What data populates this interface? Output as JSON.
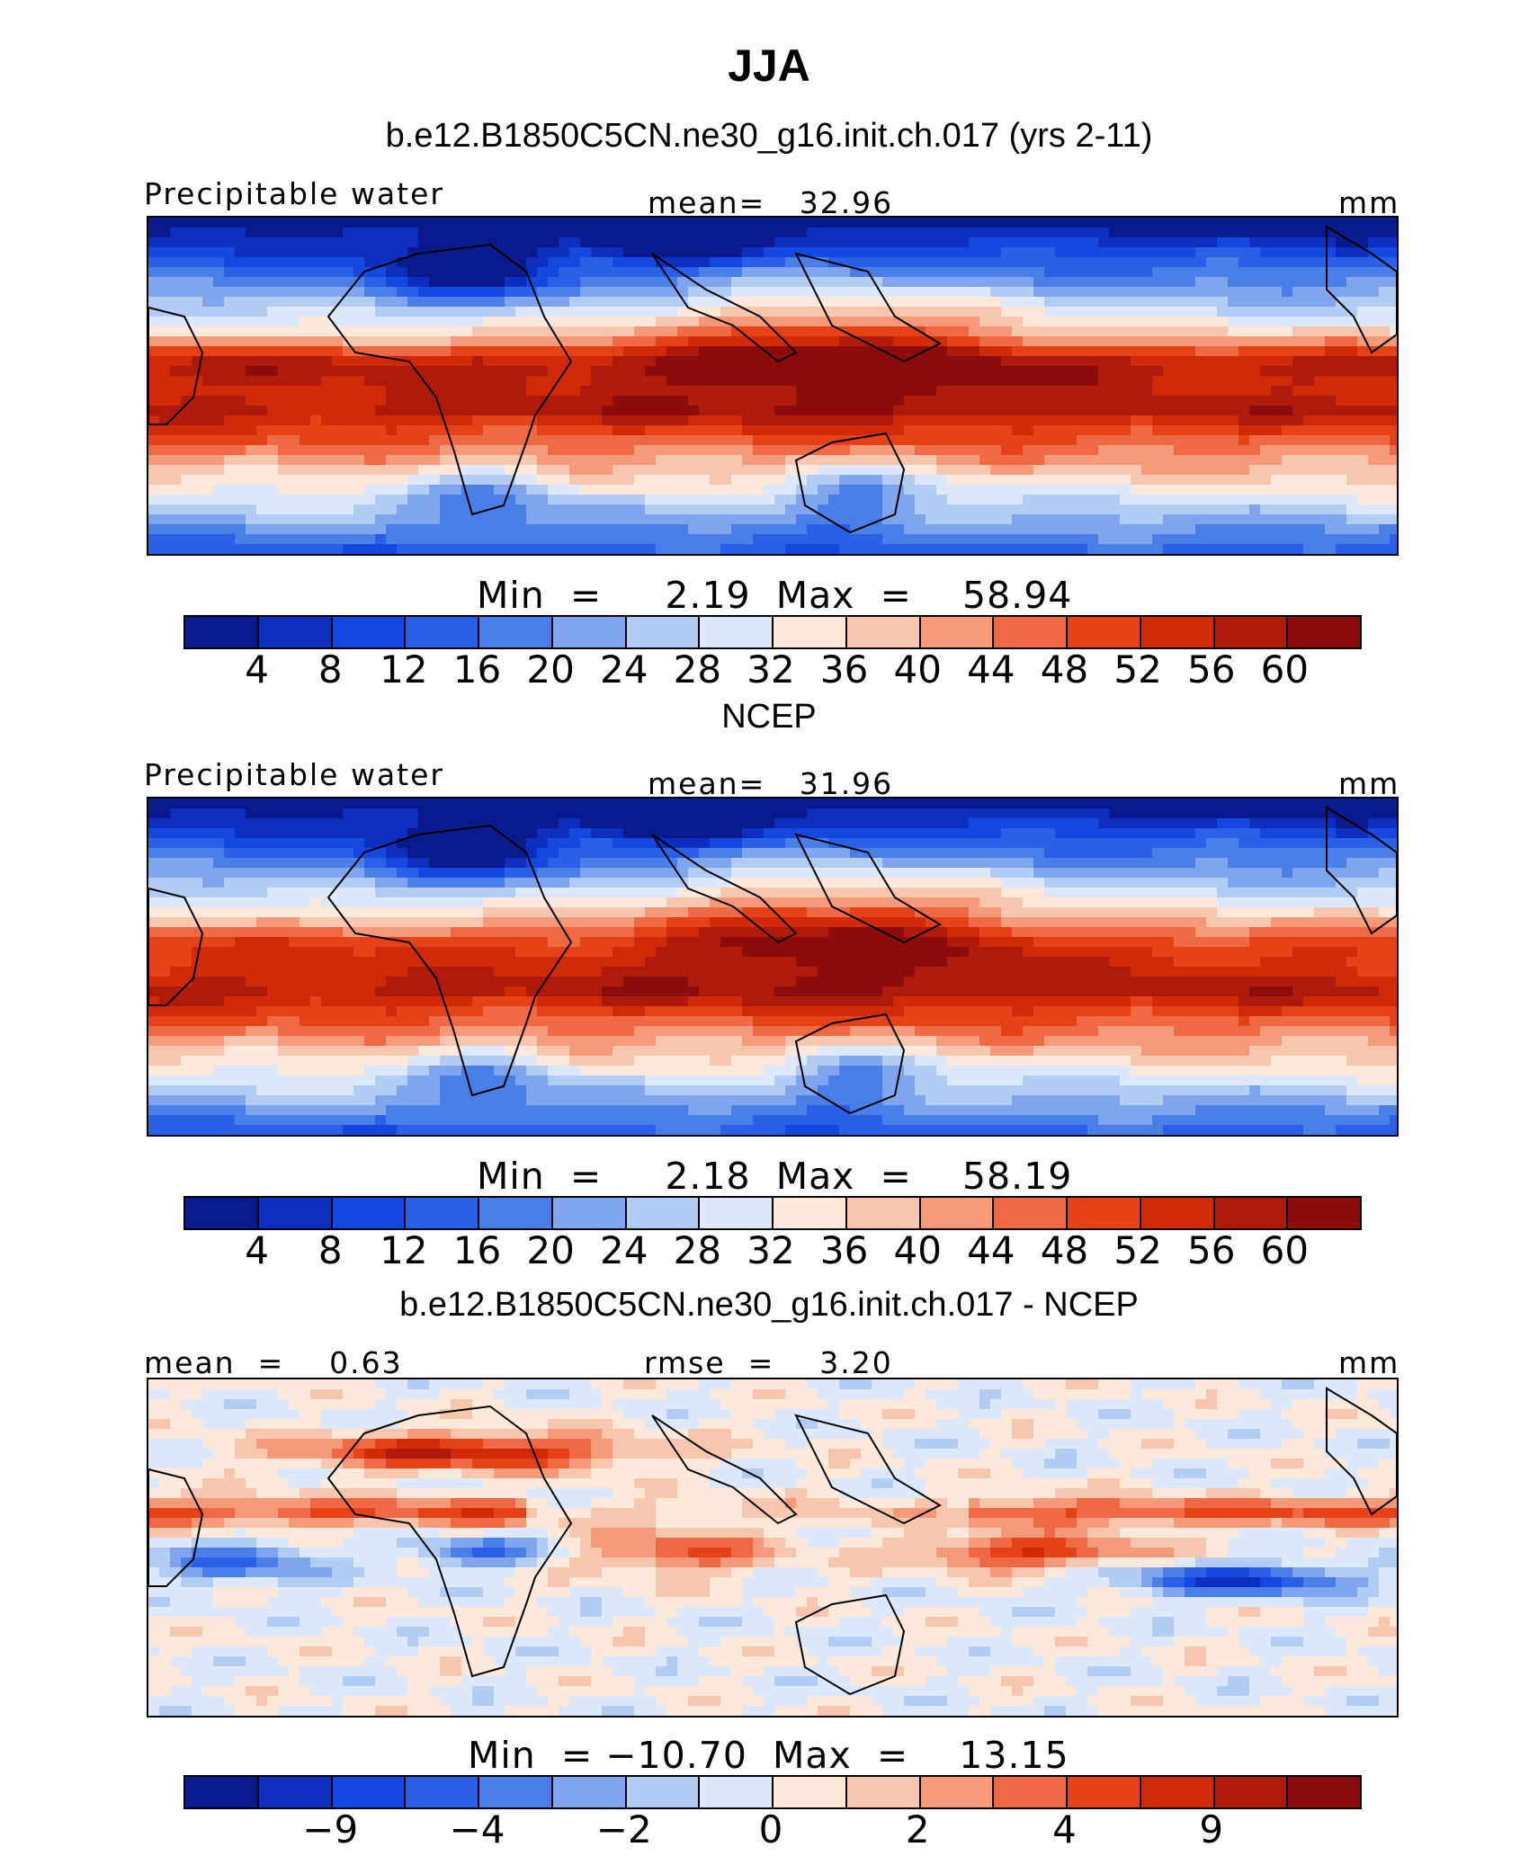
{
  "title": "JJA",
  "panels": [
    {
      "title": "b.e12.B1850C5CN.ne30_g16.init.ch.017 (yrs 2-11)",
      "left_label": "Precipitable water",
      "center_label": "mean=   32.96",
      "right_label": "mm",
      "minmax": "Min  =     2.19  Max  =    58.94",
      "tick_labels": [
        "4",
        "8",
        "12",
        "16",
        "20",
        "24",
        "28",
        "32",
        "36",
        "40",
        "44",
        "48",
        "52",
        "56",
        "60"
      ],
      "field": "model"
    },
    {
      "title": "NCEP",
      "left_label": "Precipitable water",
      "center_label": "mean=   31.96",
      "right_label": "mm",
      "minmax": "Min  =     2.18  Max  =    58.19",
      "tick_labels": [
        "4",
        "8",
        "12",
        "16",
        "20",
        "24",
        "28",
        "32",
        "36",
        "40",
        "44",
        "48",
        "52",
        "56",
        "60"
      ],
      "field": "obs"
    },
    {
      "title": "b.e12.B1850C5CN.ne30_g16.init.ch.017 - NCEP",
      "left_label": "mean  =    0.63",
      "center_label": "rmse  =    3.20",
      "right_label": "mm",
      "minmax": "Min  = −10.70  Max  =    13.15",
      "tick_labels": [
        "−9",
        "",
        "−4",
        "",
        "−2",
        "",
        "0",
        "",
        "2",
        "",
        "4",
        "",
        "9"
      ],
      "field": "diff"
    }
  ],
  "colors": {
    "palette16": [
      "#0a1a8c",
      "#0c2fbf",
      "#1448e0",
      "#2a5fe8",
      "#4a7fe8",
      "#7ea5ee",
      "#b3ccf4",
      "#dde9fa",
      "#fde9dc",
      "#f8c5ad",
      "#f49a78",
      "#ef6a44",
      "#e54218",
      "#d02a08",
      "#b01a0a",
      "#8c0b0b"
    ],
    "palette14": [
      "#0a1a8c",
      "#0c2fbf",
      "#1448e0",
      "#2a5fe8",
      "#4a7fe8",
      "#7ea5ee",
      "#b3ccf4",
      "#dde9fa",
      "#fde9dc",
      "#f8c5ad",
      "#f49a78",
      "#ef6a44",
      "#e54218",
      "#d02a08",
      "#b01a0a",
      "#8c0b0b"
    ]
  },
  "chart_data": [
    {
      "type": "heatmap",
      "title": "b.e12.B1850C5CN.ne30_g16.init.ch.017 (yrs 2-11)",
      "variable": "Precipitable water",
      "units": "mm",
      "mean": 32.96,
      "min": 2.19,
      "max": 58.94,
      "levels": [
        4,
        8,
        12,
        16,
        20,
        24,
        28,
        32,
        36,
        40,
        44,
        48,
        52,
        56,
        60
      ]
    },
    {
      "type": "heatmap",
      "title": "NCEP",
      "variable": "Precipitable water",
      "units": "mm",
      "mean": 31.96,
      "min": 2.18,
      "max": 58.19,
      "levels": [
        4,
        8,
        12,
        16,
        20,
        24,
        28,
        32,
        36,
        40,
        44,
        48,
        52,
        56,
        60
      ]
    },
    {
      "type": "heatmap",
      "title": "b.e12.B1850C5CN.ne30_g16.init.ch.017 - NCEP",
      "units": "mm",
      "mean": 0.63,
      "rmse": 3.2,
      "min": -10.7,
      "max": 13.15,
      "levels": [
        -9,
        -4,
        -2,
        0,
        2,
        4,
        9
      ]
    }
  ]
}
